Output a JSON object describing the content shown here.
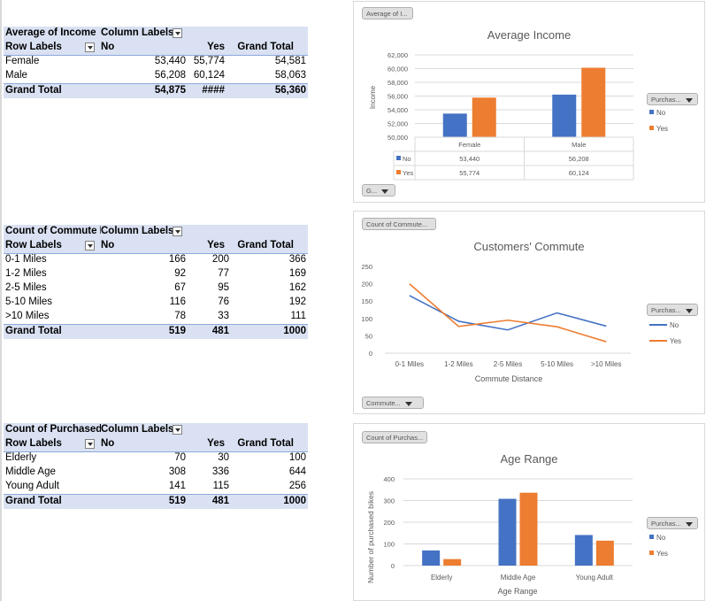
{
  "colors": {
    "no": "#4472c4",
    "yes": "#ed7d31",
    "header_bg": "#d9e1f2",
    "grid": "#d9d9d9"
  },
  "pivot_income": {
    "corner": "Average of Income",
    "col_labels": "Column Labels",
    "row_labels": "Row Labels",
    "col_no": "No",
    "col_yes": "Yes",
    "col_total": "Grand Total",
    "rows": [
      {
        "label": "Female",
        "no": "53,440",
        "yes": "55,774",
        "total": "54,581"
      },
      {
        "label": "Male",
        "no": "56,208",
        "yes": "60,124",
        "total": "58,063"
      }
    ],
    "grand": {
      "label": "Grand Total",
      "no": "54,875",
      "yes": "####",
      "total": "56,360"
    }
  },
  "pivot_commute": {
    "corner": "Count of Commute Distance",
    "col_labels": "Column Labels",
    "row_labels": "Row Labels",
    "col_no": "No",
    "col_yes": "Yes",
    "col_total": "Grand Total",
    "rows": [
      {
        "label": "0-1 Miles",
        "no": "166",
        "yes": "200",
        "total": "366"
      },
      {
        "label": "1-2 Miles",
        "no": "92",
        "yes": "77",
        "total": "169"
      },
      {
        "label": "2-5 Miles",
        "no": "67",
        "yes": "95",
        "total": "162"
      },
      {
        "label": "5-10 Miles",
        "no": "116",
        "yes": "76",
        "total": "192"
      },
      {
        "label": ">10 Miles",
        "no": "78",
        "yes": "33",
        "total": "111"
      }
    ],
    "grand": {
      "label": "Grand Total",
      "no": "519",
      "yes": "481",
      "total": "1000"
    }
  },
  "pivot_age": {
    "corner": "Count of Purchased Bike",
    "col_labels": "Column Labels",
    "row_labels": "Row Labels",
    "col_no": "No",
    "col_yes": "Yes",
    "col_total": "Grand Total",
    "rows": [
      {
        "label": "Elderly",
        "no": "70",
        "yes": "30",
        "total": "100"
      },
      {
        "label": "Middle Age",
        "no": "308",
        "yes": "336",
        "total": "644"
      },
      {
        "label": "Young Adult",
        "no": "141",
        "yes": "115",
        "total": "256"
      }
    ],
    "grand": {
      "label": "Grand Total",
      "no": "519",
      "yes": "481",
      "total": "1000"
    }
  },
  "chart_buttons": {
    "income_field": "Average of I...",
    "income_axis": "G...",
    "commute_field": "Count of Commute...",
    "commute_axis": "Commute...",
    "age_field": "Count of Purchas...",
    "legend_field": "Purchas..."
  },
  "chart_data": [
    {
      "type": "bar",
      "title": "Average Income",
      "ylabel": "Income",
      "xlabel": "",
      "categories": [
        "Female",
        "Male"
      ],
      "series": [
        {
          "name": "No",
          "values": [
            53440,
            56208
          ]
        },
        {
          "name": "Yes",
          "values": [
            55774,
            60124
          ]
        }
      ],
      "table_values": [
        [
          "53,440",
          "56,208"
        ],
        [
          "55,774",
          "60,124"
        ]
      ],
      "ylim": [
        50000,
        62000
      ],
      "yticks": [
        "50,000",
        "52,000",
        "54,000",
        "56,000",
        "58,000",
        "60,000",
        "62,000"
      ],
      "legend": "right",
      "grid": true
    },
    {
      "type": "line",
      "title": "Customers' Commute",
      "xlabel": "Commute Distance",
      "ylabel": "",
      "categories": [
        "0-1 Miles",
        "1-2 Miles",
        "2-5 Miles",
        "5-10 Miles",
        ">10 Miles"
      ],
      "series": [
        {
          "name": "No",
          "values": [
            166,
            92,
            67,
            116,
            78
          ]
        },
        {
          "name": "Yes",
          "values": [
            200,
            77,
            95,
            76,
            33
          ]
        }
      ],
      "ylim": [
        0,
        250
      ],
      "yticks": [
        "0",
        "50",
        "100",
        "150",
        "200",
        "250"
      ],
      "legend": "right",
      "grid": false
    },
    {
      "type": "bar",
      "title": "Age Range",
      "xlabel": "Age Range",
      "ylabel": "Number of purchased bikes",
      "categories": [
        "Elderly",
        "Middle Age",
        "Young Adult"
      ],
      "series": [
        {
          "name": "No",
          "values": [
            70,
            308,
            141
          ]
        },
        {
          "name": "Yes",
          "values": [
            30,
            336,
            115
          ]
        }
      ],
      "ylim": [
        0,
        400
      ],
      "yticks": [
        "0",
        "100",
        "200",
        "300",
        "400"
      ],
      "legend": "right",
      "grid": true
    }
  ]
}
